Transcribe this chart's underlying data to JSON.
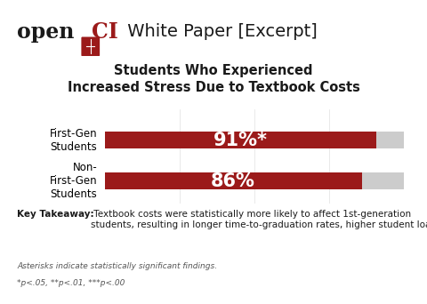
{
  "title_line1": "Students Who Experienced",
  "title_line2": "Increased Stress Due to Textbook Costs",
  "categories": [
    "First-Gen\nStudents",
    "Non-\nFirst-Gen\nStudents"
  ],
  "values": [
    91,
    86
  ],
  "bar_max": 100,
  "bar_color": "#9B1A1A",
  "remainder_color": "#CCCCCC",
  "bar_labels": [
    "91%*",
    "86%"
  ],
  "label_color": "#FFFFFF",
  "key_takeaway_bold": "Key Takeaway:",
  "key_takeaway_text": " Textbook costs were statistically more likely to affect 1st-generation\nstudents, resulting in longer time-to-graduation rates, higher student loan debt, etc.",
  "footnote1": "Asterisks indicate statistically significant findings.",
  "footnote2": "*p<.05, **p<.01, ***p<.00",
  "bg_color": "#FFFFFF",
  "title_fontsize": 10.5,
  "label_fontsize": 15,
  "category_fontsize": 8.5,
  "note_fontsize": 7.0,
  "header_open_fontsize": 17,
  "header_ci_fontsize": 17,
  "header_rest_fontsize": 14
}
